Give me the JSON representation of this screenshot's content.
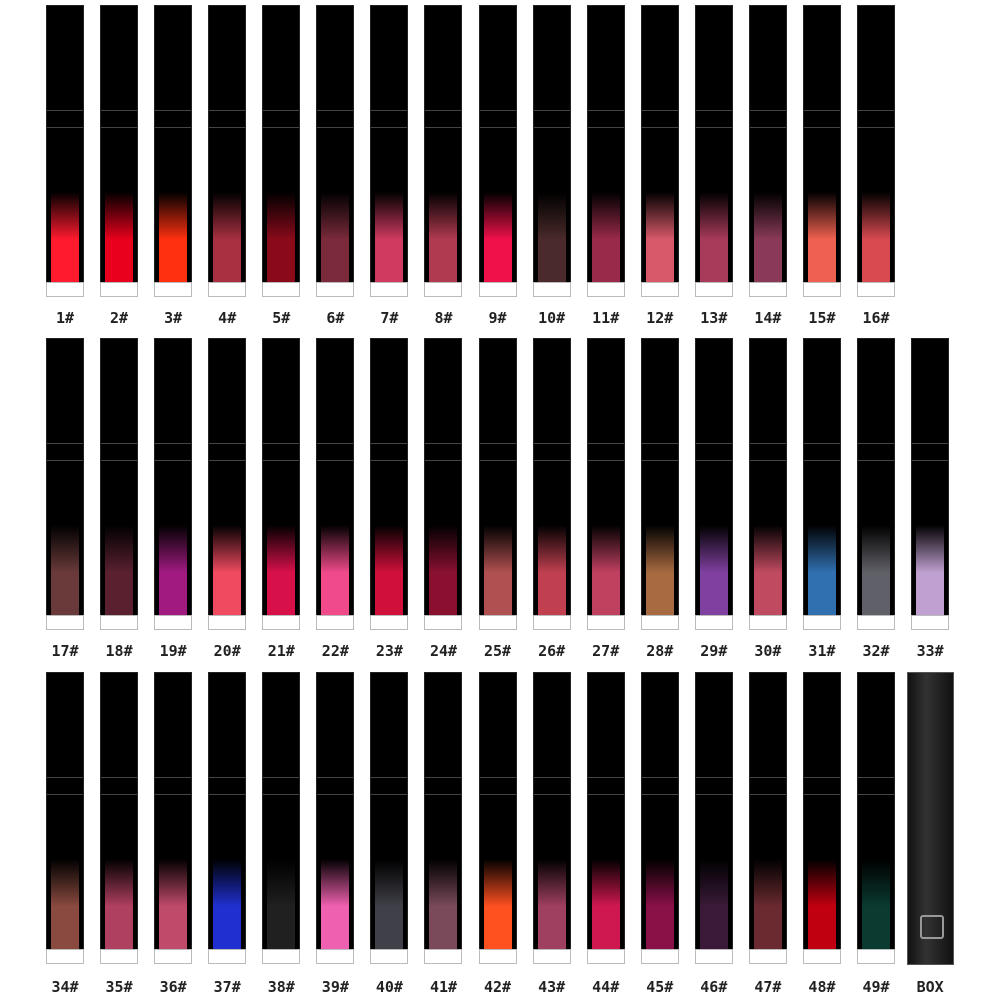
{
  "items": [
    {
      "label": "1#",
      "color": "#ff1a2e"
    },
    {
      "label": "2#",
      "color": "#e8001c"
    },
    {
      "label": "3#",
      "color": "#ff3010"
    },
    {
      "label": "4#",
      "color": "#a83040"
    },
    {
      "label": "5#",
      "color": "#8a0a1a"
    },
    {
      "label": "6#",
      "color": "#7a2a3a"
    },
    {
      "label": "7#",
      "color": "#d03a60"
    },
    {
      "label": "8#",
      "color": "#b03a50"
    },
    {
      "label": "9#",
      "color": "#f0104a"
    },
    {
      "label": "10#",
      "color": "#4a2a2a"
    },
    {
      "label": "11#",
      "color": "#9a2a4a"
    },
    {
      "label": "12#",
      "color": "#d85a6a"
    },
    {
      "label": "13#",
      "color": "#a83a5a"
    },
    {
      "label": "14#",
      "color": "#8a3a58"
    },
    {
      "label": "15#",
      "color": "#f06050"
    },
    {
      "label": "16#",
      "color": "#d84a50"
    },
    {
      "label": "17#",
      "color": "#6a3a3a"
    },
    {
      "label": "18#",
      "color": "#5a2030"
    },
    {
      "label": "19#",
      "color": "#a01a80"
    },
    {
      "label": "20#",
      "color": "#f04a60"
    },
    {
      "label": "21#",
      "color": "#d8104a"
    },
    {
      "label": "22#",
      "color": "#f04a8a"
    },
    {
      "label": "23#",
      "color": "#d0103a"
    },
    {
      "label": "24#",
      "color": "#8a1030"
    },
    {
      "label": "25#",
      "color": "#b05050"
    },
    {
      "label": "26#",
      "color": "#c04050"
    },
    {
      "label": "27#",
      "color": "#c04060"
    },
    {
      "label": "28#",
      "color": "#a86a40"
    },
    {
      "label": "29#",
      "color": "#8040a0"
    },
    {
      "label": "30#",
      "color": "#c04a60"
    },
    {
      "label": "31#",
      "color": "#3070b0"
    },
    {
      "label": "32#",
      "color": "#606068"
    },
    {
      "label": "33#",
      "color": "#c0a0d0"
    },
    {
      "label": "34#",
      "color": "#8a4a40"
    },
    {
      "label": "35#",
      "color": "#b04060"
    },
    {
      "label": "36#",
      "color": "#c04a6a"
    },
    {
      "label": "37#",
      "color": "#2030d0"
    },
    {
      "label": "38#",
      "color": "#202020"
    },
    {
      "label": "39#",
      "color": "#f060b0"
    },
    {
      "label": "40#",
      "color": "#404048"
    },
    {
      "label": "41#",
      "color": "#7a4a5a"
    },
    {
      "label": "42#",
      "color": "#ff5020"
    },
    {
      "label": "43#",
      "color": "#a04060"
    },
    {
      "label": "44#",
      "color": "#d01850"
    },
    {
      "label": "45#",
      "color": "#8a1048"
    },
    {
      "label": "46#",
      "color": "#3a1a38"
    },
    {
      "label": "47#",
      "color": "#6a2a30"
    },
    {
      "label": "48#",
      "color": "#c00010"
    },
    {
      "label": "49#",
      "color": "#0a3a30"
    },
    {
      "label": "BOX"
    }
  ]
}
